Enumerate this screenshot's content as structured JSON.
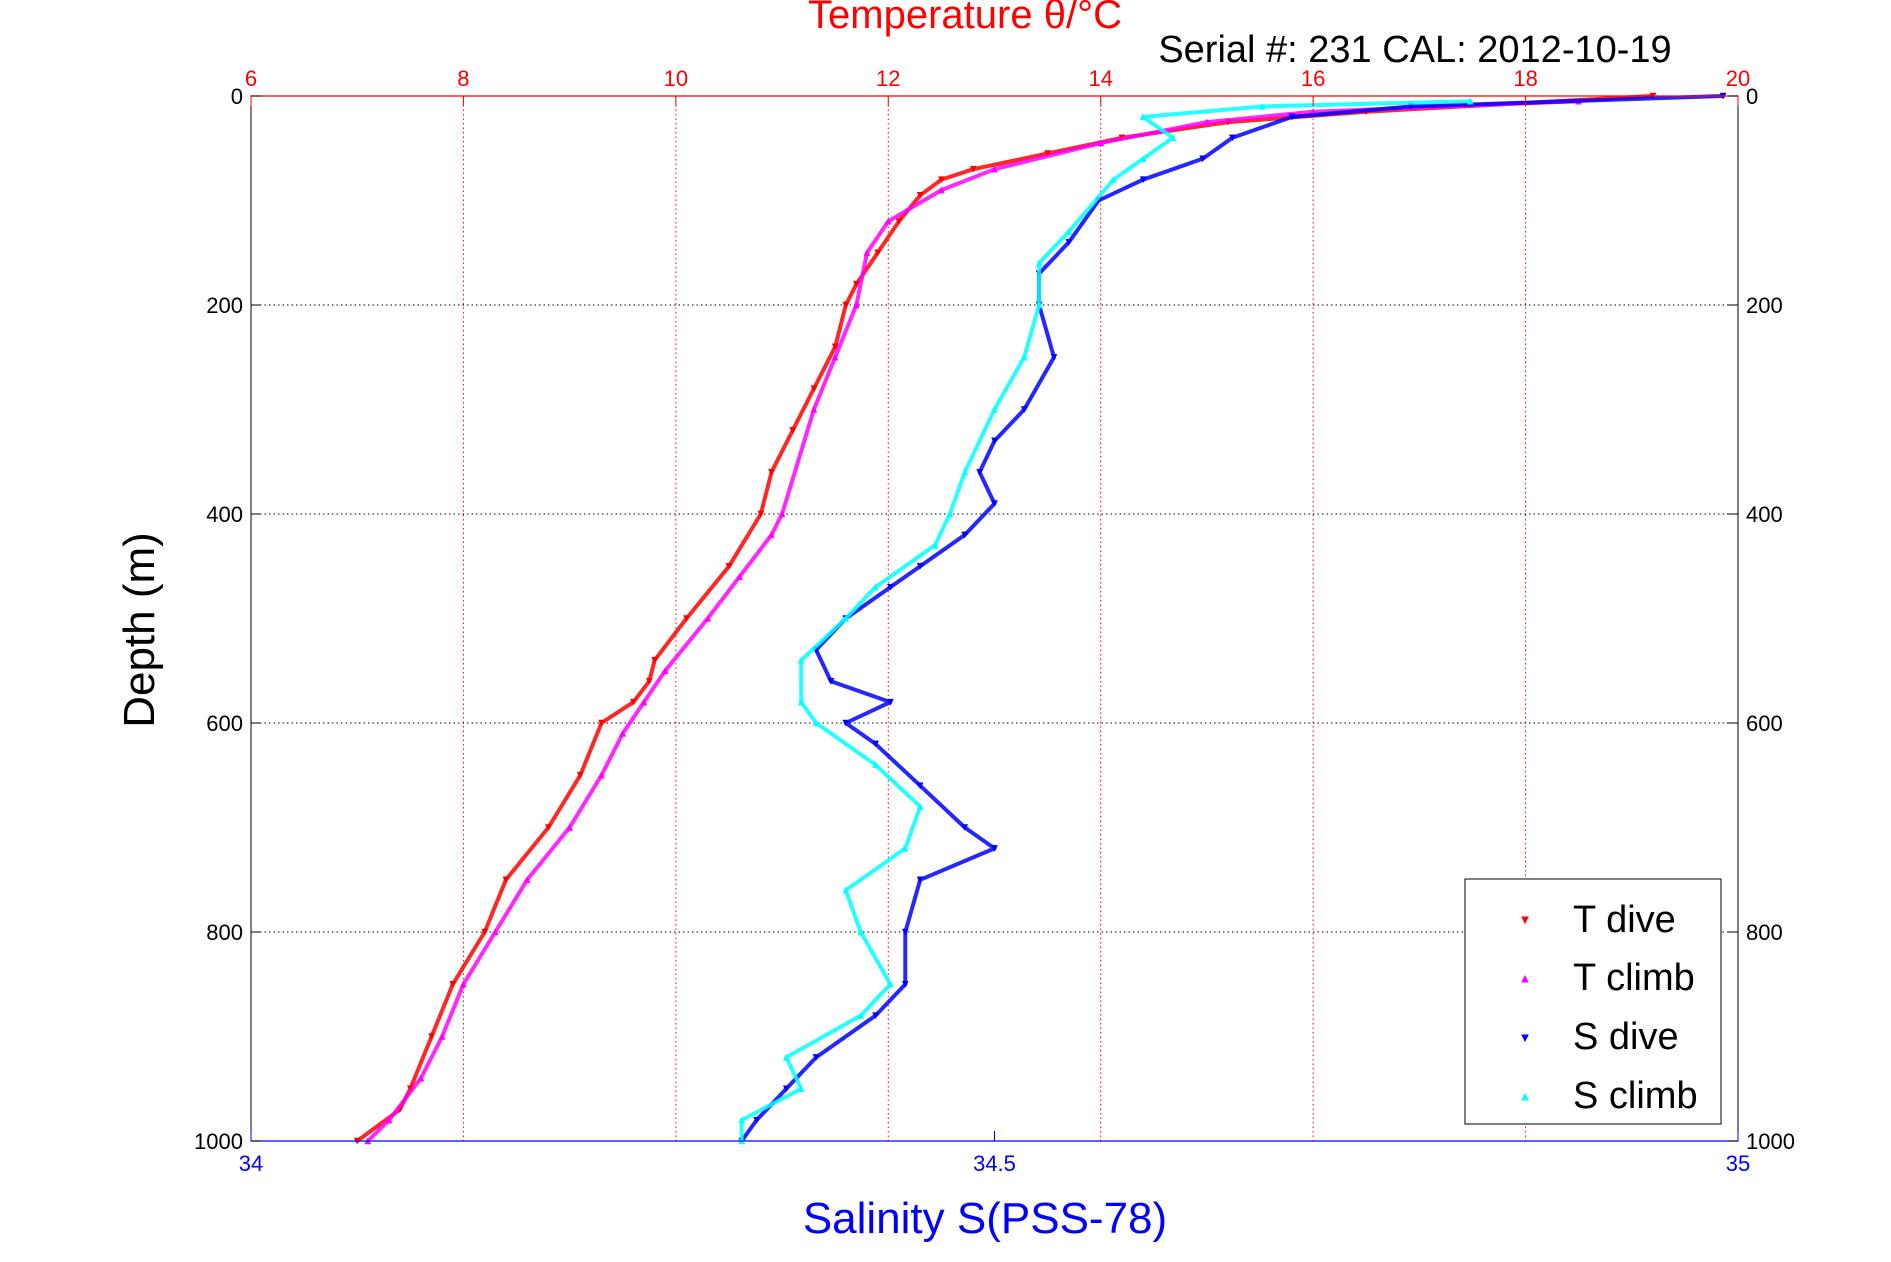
{
  "chart_data": {
    "type": "scatter",
    "title": "Temperature θ/°C",
    "subtitle": "Serial #: 231  CAL: 2012-10-19",
    "xlabel": "Salinity S(PSS-78)",
    "ylabel": "Depth (m)",
    "grid": true,
    "legend_position": "bottom-right",
    "colors": {
      "temperature_axis": "#ff0000",
      "salinity_axis": "#0000ff",
      "t_dive": "#ff0000",
      "t_climb": "#ff00ff",
      "s_dive": "#0000ff",
      "s_climb": "#00ffff"
    },
    "axes": {
      "temperature": {
        "range": [
          6,
          20
        ],
        "ticks": [
          "6",
          "8",
          "10",
          "12",
          "14",
          "16",
          "18",
          "20"
        ]
      },
      "salinity": {
        "range": [
          34,
          35
        ],
        "ticks": [
          "34",
          "34.5",
          "35"
        ]
      },
      "depth": {
        "range": [
          0,
          1000
        ],
        "reversed": true,
        "ticks": [
          "0",
          "200",
          "400",
          "600",
          "800",
          "1000"
        ]
      }
    },
    "series": [
      {
        "name": "T dive",
        "axis": "temperature",
        "marker": "triangle-down",
        "points": [
          [
            19.2,
            0
          ],
          [
            16.5,
            15
          ],
          [
            15.2,
            25
          ],
          [
            14.2,
            40
          ],
          [
            13.5,
            55
          ],
          [
            12.8,
            70
          ],
          [
            12.5,
            80
          ],
          [
            12.3,
            95
          ],
          [
            12.1,
            120
          ],
          [
            11.9,
            150
          ],
          [
            11.7,
            180
          ],
          [
            11.6,
            200
          ],
          [
            11.5,
            240
          ],
          [
            11.3,
            280
          ],
          [
            11.1,
            320
          ],
          [
            10.9,
            360
          ],
          [
            10.8,
            400
          ],
          [
            10.5,
            450
          ],
          [
            10.1,
            500
          ],
          [
            9.8,
            540
          ],
          [
            9.75,
            560
          ],
          [
            9.6,
            580
          ],
          [
            9.3,
            600
          ],
          [
            9.1,
            650
          ],
          [
            8.8,
            700
          ],
          [
            8.4,
            750
          ],
          [
            8.2,
            800
          ],
          [
            7.9,
            850
          ],
          [
            7.7,
            900
          ],
          [
            7.5,
            950
          ],
          [
            7.4,
            970
          ],
          [
            7.0,
            1000
          ]
        ]
      },
      {
        "name": "T climb",
        "axis": "temperature",
        "marker": "triangle-up",
        "points": [
          [
            18.5,
            5
          ],
          [
            16.0,
            15
          ],
          [
            15.0,
            25
          ],
          [
            14.0,
            45
          ],
          [
            13.0,
            70
          ],
          [
            12.5,
            90
          ],
          [
            12.0,
            120
          ],
          [
            11.8,
            150
          ],
          [
            11.7,
            200
          ],
          [
            11.5,
            250
          ],
          [
            11.3,
            300
          ],
          [
            11.0,
            400
          ],
          [
            10.9,
            420
          ],
          [
            10.6,
            460
          ],
          [
            10.3,
            500
          ],
          [
            9.9,
            550
          ],
          [
            9.7,
            580
          ],
          [
            9.5,
            610
          ],
          [
            9.3,
            650
          ],
          [
            9.0,
            700
          ],
          [
            8.6,
            750
          ],
          [
            8.3,
            800
          ],
          [
            8.0,
            850
          ],
          [
            7.8,
            900
          ],
          [
            7.6,
            940
          ],
          [
            7.3,
            980
          ],
          [
            7.1,
            1000
          ]
        ]
      },
      {
        "name": "S dive",
        "axis": "salinity",
        "marker": "triangle-down",
        "points": [
          [
            34.99,
            0
          ],
          [
            34.78,
            10
          ],
          [
            34.7,
            20
          ],
          [
            34.66,
            40
          ],
          [
            34.64,
            60
          ],
          [
            34.6,
            80
          ],
          [
            34.57,
            100
          ],
          [
            34.55,
            140
          ],
          [
            34.53,
            170
          ],
          [
            34.53,
            200
          ],
          [
            34.54,
            250
          ],
          [
            34.52,
            300
          ],
          [
            34.5,
            330
          ],
          [
            34.49,
            360
          ],
          [
            34.5,
            390
          ],
          [
            34.48,
            420
          ],
          [
            34.45,
            450
          ],
          [
            34.43,
            470
          ],
          [
            34.4,
            500
          ],
          [
            34.38,
            530
          ],
          [
            34.39,
            560
          ],
          [
            34.43,
            580
          ],
          [
            34.4,
            600
          ],
          [
            34.42,
            620
          ],
          [
            34.45,
            660
          ],
          [
            34.48,
            700
          ],
          [
            34.5,
            720
          ],
          [
            34.45,
            750
          ],
          [
            34.44,
            800
          ],
          [
            34.44,
            850
          ],
          [
            34.42,
            880
          ],
          [
            34.38,
            920
          ],
          [
            34.36,
            950
          ],
          [
            34.34,
            980
          ],
          [
            34.33,
            1000
          ]
        ]
      },
      {
        "name": "S climb",
        "axis": "salinity",
        "marker": "triangle-up",
        "points": [
          [
            34.82,
            5
          ],
          [
            34.68,
            10
          ],
          [
            34.6,
            20
          ],
          [
            34.62,
            40
          ],
          [
            34.6,
            60
          ],
          [
            34.58,
            80
          ],
          [
            34.55,
            130
          ],
          [
            34.53,
            160
          ],
          [
            34.53,
            200
          ],
          [
            34.52,
            250
          ],
          [
            34.5,
            300
          ],
          [
            34.48,
            360
          ],
          [
            34.47,
            400
          ],
          [
            34.46,
            430
          ],
          [
            34.42,
            470
          ],
          [
            34.4,
            500
          ],
          [
            34.37,
            540
          ],
          [
            34.37,
            580
          ],
          [
            34.38,
            600
          ],
          [
            34.42,
            640
          ],
          [
            34.45,
            680
          ],
          [
            34.44,
            720
          ],
          [
            34.4,
            760
          ],
          [
            34.41,
            800
          ],
          [
            34.43,
            850
          ],
          [
            34.41,
            880
          ],
          [
            34.36,
            920
          ],
          [
            34.37,
            950
          ],
          [
            34.33,
            980
          ],
          [
            34.33,
            1000
          ]
        ]
      }
    ]
  }
}
